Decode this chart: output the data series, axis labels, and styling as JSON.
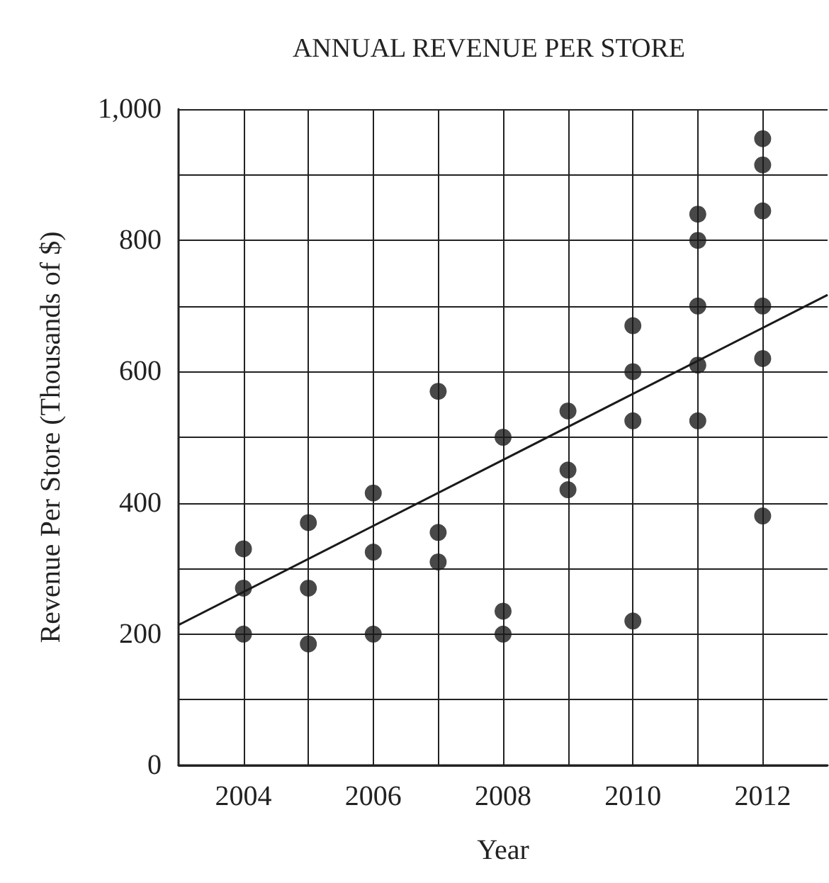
{
  "chart_data": {
    "type": "scatter",
    "title": "ANNUAL REVENUE PER STORE",
    "xlabel": "Year",
    "ylabel": "Revenue Per Store (Thousands of $)",
    "series": [
      {
        "color": "#1a1a1a",
        "marker": "circle",
        "x": [
          2004,
          2004,
          2004,
          2005,
          2005,
          2005,
          2006,
          2006,
          2006,
          2007,
          2007,
          2007,
          2008,
          2008,
          2008,
          2009,
          2009,
          2009,
          2010,
          2010,
          2010,
          2010,
          2011,
          2011,
          2011,
          2011,
          2011,
          2012,
          2012,
          2012,
          2012,
          2012,
          2012
        ],
        "values": [
          330,
          270,
          200,
          370,
          270,
          185,
          415,
          325,
          200,
          570,
          355,
          310,
          500,
          235,
          200,
          540,
          450,
          420,
          670,
          600,
          525,
          220,
          840,
          800,
          700,
          610,
          525,
          955,
          915,
          845,
          700,
          620,
          380
        ]
      },
      {
        "type": "line",
        "marker": "none",
        "color": "#1a1a1a",
        "x": [
          2003,
          2013
        ],
        "values": [
          214,
          717
        ]
      }
    ],
    "xlim": [
      2003,
      2013
    ],
    "xticks": [
      2004,
      {
        "value": 2005,
        "label": null
      },
      2006,
      {
        "value": 2007,
        "label": null
      },
      2008,
      {
        "value": 2009,
        "label": null
      },
      2010,
      {
        "value": 2011,
        "label": null
      },
      2012
    ],
    "ylim": [
      0,
      1000
    ],
    "yticks": [
      0,
      {
        "value": 100,
        "label": null
      },
      200,
      {
        "value": 300,
        "label": null
      },
      400,
      {
        "value": 500,
        "label": null
      },
      600,
      {
        "value": 700,
        "label": null
      },
      800,
      {
        "value": 900,
        "label": null
      },
      {
        "value": 1000,
        "label": "1,000"
      }
    ],
    "grid": true
  }
}
